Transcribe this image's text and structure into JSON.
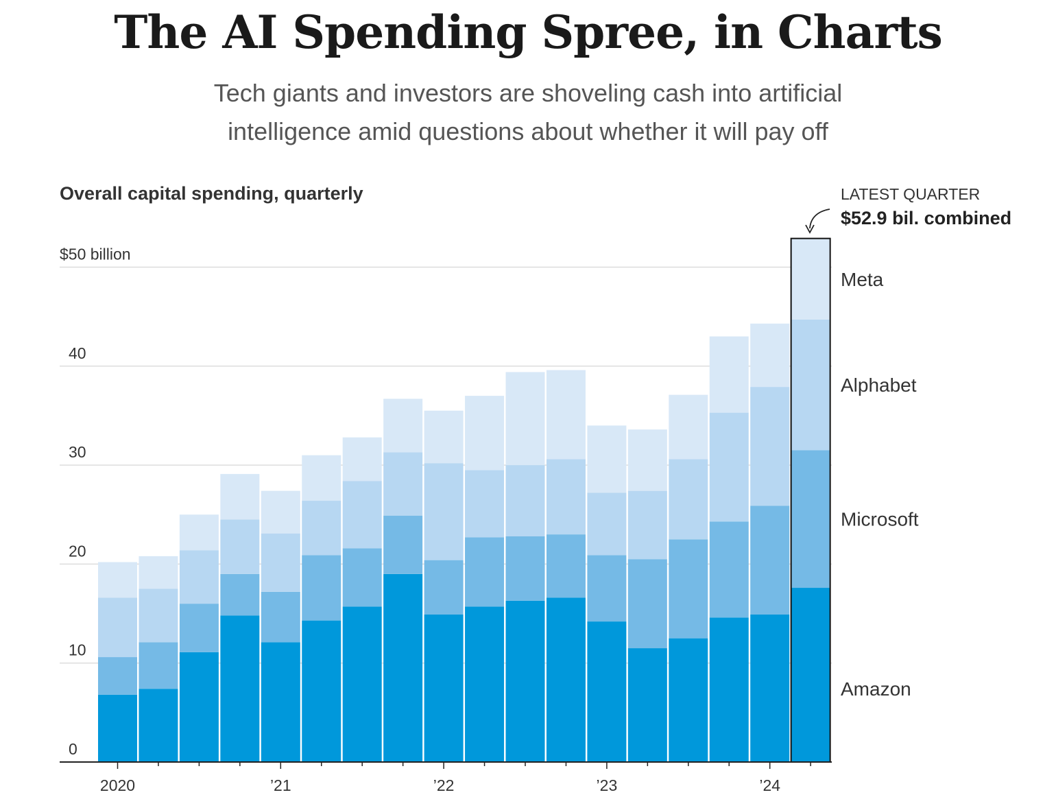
{
  "header": {
    "title": "The AI Spending Spree, in Charts",
    "subtitle": "Tech giants and investors are shoveling cash into artificial intelligence amid questions about whether it will pay off"
  },
  "callout": {
    "label": "LATEST QUARTER",
    "value": "$52.9 bil. combined"
  },
  "chart_data": {
    "type": "bar",
    "stacked": true,
    "title": "Overall capital spending, quarterly",
    "ylabel": "",
    "xlabel": "",
    "ylim": [
      0,
      55
    ],
    "y_ticks": [
      {
        "value": 0,
        "label": "0"
      },
      {
        "value": 10,
        "label": "10"
      },
      {
        "value": 20,
        "label": "20"
      },
      {
        "value": 30,
        "label": "30"
      },
      {
        "value": 40,
        "label": "40"
      },
      {
        "value": 50,
        "label": "$50 billion"
      }
    ],
    "categories": [
      "Q1 2020",
      "Q2 2020",
      "Q3 2020",
      "Q4 2020",
      "Q1 2021",
      "Q2 2021",
      "Q3 2021",
      "Q4 2021",
      "Q1 2022",
      "Q2 2022",
      "Q3 2022",
      "Q4 2022",
      "Q1 2023",
      "Q2 2023",
      "Q3 2023",
      "Q4 2023",
      "Q1 2024",
      "Q2 2024"
    ],
    "x_tick_labels": [
      {
        "index": 0,
        "label": "2020"
      },
      {
        "index": 4,
        "label": "’21"
      },
      {
        "index": 8,
        "label": "’22"
      },
      {
        "index": 12,
        "label": "’23"
      },
      {
        "index": 16,
        "label": "’24"
      }
    ],
    "series": [
      {
        "name": "Amazon",
        "color": "#0098db",
        "values": [
          6.8,
          7.4,
          11.1,
          14.8,
          12.1,
          14.3,
          15.7,
          19.0,
          14.9,
          15.7,
          16.3,
          16.6,
          14.2,
          11.5,
          12.5,
          14.6,
          14.9,
          17.6
        ]
      },
      {
        "name": "Microsoft",
        "color": "#75bae6",
        "values": [
          3.8,
          4.7,
          4.9,
          4.2,
          5.1,
          6.6,
          5.9,
          5.9,
          5.5,
          7.0,
          6.5,
          6.4,
          6.7,
          9.0,
          10.0,
          9.7,
          11.0,
          13.9
        ]
      },
      {
        "name": "Alphabet",
        "color": "#b7d7f2",
        "values": [
          6.0,
          5.4,
          5.4,
          5.5,
          5.9,
          5.5,
          6.8,
          6.4,
          9.8,
          6.8,
          7.2,
          7.6,
          6.3,
          6.9,
          8.1,
          11.0,
          12.0,
          13.2
        ]
      },
      {
        "name": "Meta",
        "color": "#d8e8f7",
        "values": [
          3.6,
          3.3,
          3.6,
          4.6,
          4.3,
          4.6,
          4.4,
          5.4,
          5.3,
          7.5,
          9.4,
          9.0,
          6.8,
          6.2,
          6.5,
          7.7,
          6.4,
          8.2
        ]
      }
    ],
    "highlight": {
      "index": 17,
      "total": 52.9
    },
    "grid": true,
    "legend_placement": "right"
  }
}
